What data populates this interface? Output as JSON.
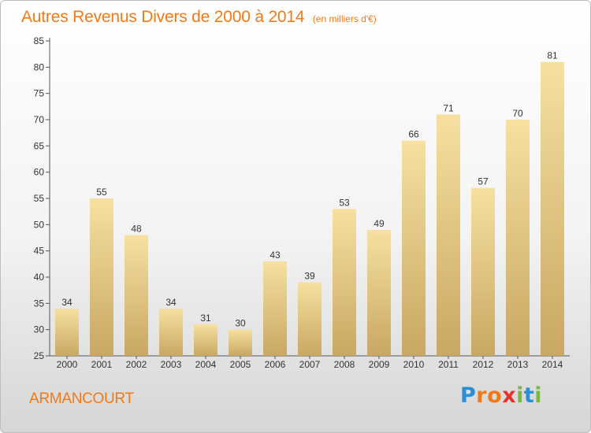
{
  "header": {
    "title": "Autres Revenus Divers de 2000 à 2014",
    "subtitle": "(en milliers d'€)"
  },
  "footer": {
    "commune": "ARMANCOURT",
    "brand_letters": [
      "P",
      "r",
      "o",
      "x",
      "i",
      "t",
      "i"
    ],
    "brand_colors": [
      "#2a8fd6",
      "#f07a1a",
      "#f07a1a",
      "#e8312a",
      "#7ab648",
      "#2a8fd6",
      "#7ab648"
    ]
  },
  "colors": {
    "bar_light": "#f7e0a0",
    "bar_dark": "#c8a862",
    "axis": "#555555",
    "title": "#f07a1a"
  },
  "chart_data": {
    "type": "bar",
    "categories": [
      "2000",
      "2001",
      "2002",
      "2003",
      "2004",
      "2005",
      "2006",
      "2007",
      "2008",
      "2009",
      "2010",
      "2011",
      "2012",
      "2013",
      "2014"
    ],
    "values": [
      34,
      55,
      48,
      34,
      31,
      30,
      43,
      39,
      53,
      49,
      66,
      71,
      57,
      70,
      81
    ],
    "title": "Autres Revenus Divers de 2000 à 2014",
    "subtitle": "(en milliers d'€)",
    "xlabel": "",
    "ylabel": "",
    "ylim": [
      25,
      85
    ],
    "yticks": [
      25,
      30,
      35,
      40,
      45,
      50,
      55,
      60,
      65,
      70,
      75,
      80,
      85
    ],
    "grid": false,
    "data_labels": true
  }
}
